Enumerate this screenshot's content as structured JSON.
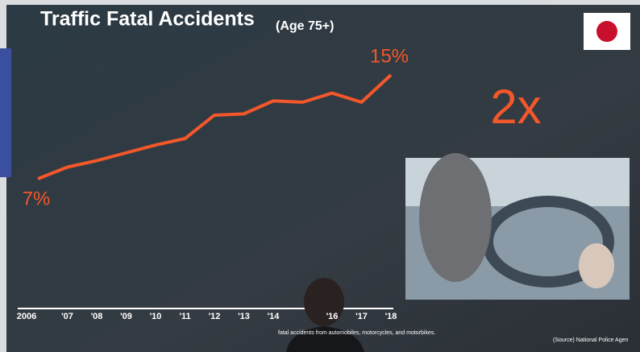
{
  "chart_data": {
    "type": "line",
    "title": "Traffic Fatal Accidents",
    "subtitle": "(Age 75+)",
    "annotation": "2x",
    "footnote": "fatal accidents from automobiles, motorcycles, and motorbikes.",
    "source": "(Source) National Police Agen",
    "categories": [
      "2006",
      "'07",
      "'08",
      "'09",
      "'10",
      "'11",
      "'12",
      "'13",
      "'14",
      null,
      "'16",
      "'17",
      "'18"
    ],
    "values": [
      7,
      7.9,
      8.4,
      9.0,
      9.6,
      10.1,
      11.9,
      12.0,
      13.0,
      12.9,
      13.6,
      12.9,
      15
    ],
    "value_labels": [
      "7%",
      null,
      null,
      null,
      null,
      null,
      null,
      null,
      null,
      null,
      null,
      null,
      "15%"
    ],
    "color": "#f4572a"
  }
}
